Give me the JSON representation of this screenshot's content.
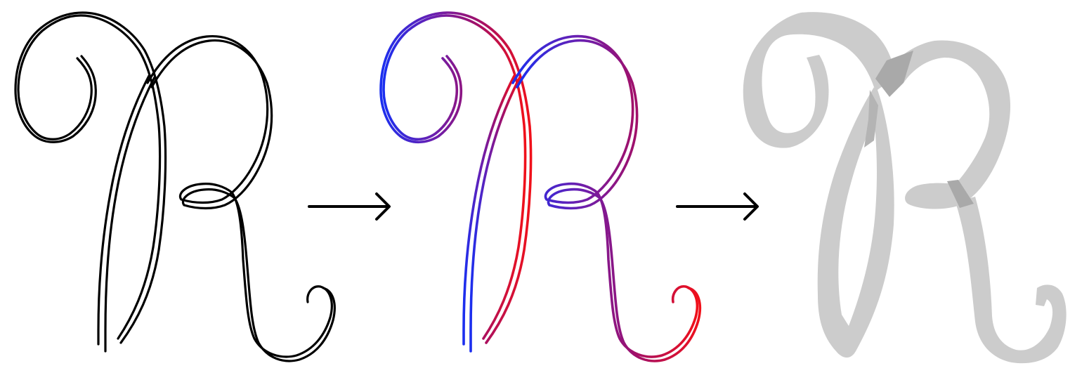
{
  "figure": {
    "stages": [
      {
        "kind": "raw-outline",
        "stroke": "#000000"
      },
      {
        "kind": "gradient-outline",
        "gradient": [
          "#1a2ff0",
          "#6a1fb0",
          "#a0106a",
          "#f0101a"
        ]
      },
      {
        "kind": "filled-ribbon",
        "fill": "#cccccc",
        "shade": "#a9a9a9"
      }
    ],
    "arrows": [
      {
        "from": "raw-outline",
        "to": "gradient-outline",
        "color": "#000000"
      },
      {
        "from": "gradient-outline",
        "to": "filled-ribbon",
        "color": "#000000"
      }
    ]
  }
}
